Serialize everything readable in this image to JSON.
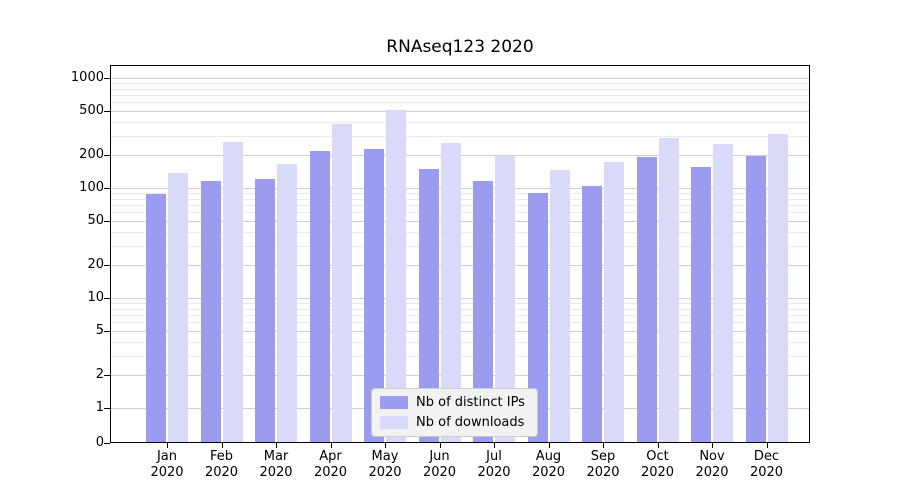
{
  "title": "RNAseq123 2020",
  "chart_data": {
    "type": "bar",
    "title": "RNAseq123 2020",
    "categories": [
      "Jan",
      "Feb",
      "Mar",
      "Apr",
      "May",
      "Jun",
      "Jul",
      "Aug",
      "Sep",
      "Oct",
      "Nov",
      "Dec"
    ],
    "xtick_year": "2020",
    "series": [
      {
        "name": "Nb of distinct IPs",
        "color": "#9b9bef",
        "values": [
          88,
          115,
          122,
          215,
          228,
          150,
          115,
          90,
          104,
          190,
          157,
          196
        ]
      },
      {
        "name": "Nb of downloads",
        "color": "#d9d9f8",
        "values": [
          137,
          260,
          165,
          380,
          515,
          258,
          196,
          145,
          172,
          288,
          250,
          308
        ]
      }
    ],
    "yscale": "symlog",
    "yticks": [
      0,
      1,
      2,
      5,
      10,
      20,
      50,
      100,
      200,
      500,
      1000
    ],
    "ylim": [
      0,
      1000
    ],
    "grid": "horizontal",
    "legend_position": "lower center"
  }
}
